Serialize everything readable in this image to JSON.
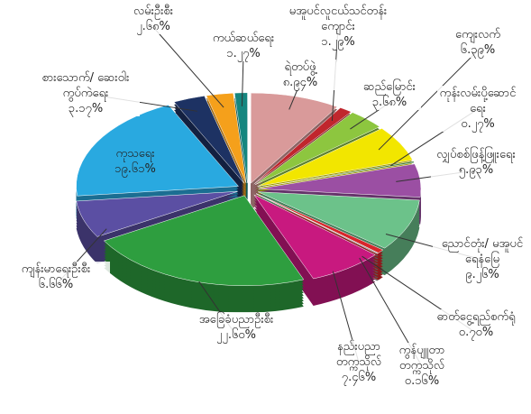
{
  "chart_data": {
    "type": "pie",
    "categories": [
      "ရဲတပ်ဖွဲ့",
      "မအူပင်လူငယ်သင်တန်းကျောင်း",
      "ဆည်မြောင်း",
      "ကျေးလက်",
      "ကုန်းလမ်းပို့ဆောင်ရေး",
      "လျှပ်စစ်ဖြန့်ဖြူးရေး",
      "ညောင်တုံး/ မအူပင်ရေနံမြေ",
      "ဓာတ်ငွေ့ရည်စက်ရုံ",
      "ကွန်ပျူတာတက္ကသိုလ်",
      "နည်းပညာတက္ကသိုလ်",
      "အခြေခံပညာဦးစီး",
      "ကျန်းမာရေးဦးစီး",
      "ကုသရေး",
      "စားသောက်/ ဆေးဝါးကွပ်ကဲရေး",
      "လမ်းဦးစီး",
      "ကယ်ဆယ်ရေး"
    ],
    "values": [
      8.94,
      1.29,
      3.68,
      6.39,
      0.27,
      5.93,
      9.26,
      0.7,
      0.16,
      7.46,
      22.6,
      6.66,
      19.61,
      3.17,
      2.68,
      1.27
    ],
    "value_labels": [
      "၈.၉၄%",
      "၁.၂၉%",
      "၃.၆၈%",
      "၆.၃၉%",
      "၀.၂၇%",
      "၅.၉၃%",
      "၉.၂၆%",
      "၀.၇၀%",
      "၀.၁၆%",
      "၇.၄၆%",
      "၂၂.၆၀%",
      "၆.၆၆%",
      "၁၉.၆၁%",
      "၃.၁၇%",
      "၂.၆၈%",
      "၁.၂၇%"
    ],
    "colors": [
      "#d99a9a",
      "#c0262d",
      "#8dc63f",
      "#f2e600",
      "#3b7d3b",
      "#9b4fa3",
      "#6cc28a",
      "#d7262b",
      "#8a8a8a",
      "#c8197f",
      "#2e9e3f",
      "#5b4fa3",
      "#29a9e0",
      "#1d3263",
      "#f5a01b",
      "#15867f"
    ]
  }
}
